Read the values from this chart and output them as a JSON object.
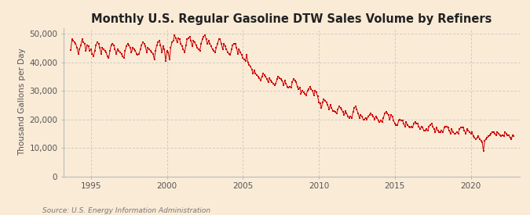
{
  "title": "Monthly U.S. Regular Gasoline DTW Sales Volume by Refiners",
  "ylabel": "Thousand Gallons per Day",
  "source": "Source: U.S. Energy Information Administration",
  "bg_color": "#faebd7",
  "line_color": "#cc0000",
  "grid_color": "#bbbbbb",
  "ylim": [
    0,
    52000
  ],
  "yticks": [
    0,
    10000,
    20000,
    30000,
    40000,
    50000
  ],
  "ytick_labels": [
    "0",
    "10,000",
    "20,000",
    "30,000",
    "40,000",
    "50,000"
  ],
  "x_start_year": 1993.2,
  "x_end_year": 2023.2,
  "xticks": [
    1995,
    2000,
    2005,
    2010,
    2015,
    2020
  ],
  "title_fontsize": 10.5,
  "label_fontsize": 7.5,
  "tick_fontsize": 7.5,
  "source_fontsize": 6.5,
  "series": [
    [
      1993.67,
      44200
    ],
    [
      1993.75,
      48000
    ],
    [
      1993.83,
      47500
    ],
    [
      1993.92,
      47000
    ],
    [
      1994.0,
      46500
    ],
    [
      1994.08,
      45000
    ],
    [
      1994.17,
      43000
    ],
    [
      1994.25,
      44500
    ],
    [
      1994.33,
      46000
    ],
    [
      1994.42,
      48000
    ],
    [
      1994.5,
      47000
    ],
    [
      1994.58,
      46500
    ],
    [
      1994.67,
      44000
    ],
    [
      1994.75,
      46000
    ],
    [
      1994.83,
      45500
    ],
    [
      1994.92,
      44000
    ],
    [
      1995.0,
      44500
    ],
    [
      1995.08,
      43000
    ],
    [
      1995.17,
      42000
    ],
    [
      1995.25,
      44000
    ],
    [
      1995.33,
      46000
    ],
    [
      1995.42,
      47000
    ],
    [
      1995.5,
      46500
    ],
    [
      1995.58,
      45000
    ],
    [
      1995.67,
      43000
    ],
    [
      1995.75,
      45000
    ],
    [
      1995.83,
      44500
    ],
    [
      1995.92,
      44000
    ],
    [
      1996.0,
      43500
    ],
    [
      1996.08,
      42000
    ],
    [
      1996.17,
      41500
    ],
    [
      1996.25,
      44000
    ],
    [
      1996.33,
      46000
    ],
    [
      1996.42,
      46500
    ],
    [
      1996.5,
      46000
    ],
    [
      1996.58,
      44500
    ],
    [
      1996.67,
      43000
    ],
    [
      1996.75,
      44500
    ],
    [
      1996.83,
      44000
    ],
    [
      1996.92,
      43500
    ],
    [
      1997.0,
      43000
    ],
    [
      1997.08,
      42000
    ],
    [
      1997.17,
      41500
    ],
    [
      1997.25,
      44000
    ],
    [
      1997.33,
      45500
    ],
    [
      1997.42,
      46500
    ],
    [
      1997.5,
      46000
    ],
    [
      1997.58,
      45000
    ],
    [
      1997.67,
      43500
    ],
    [
      1997.75,
      45000
    ],
    [
      1997.83,
      44500
    ],
    [
      1997.92,
      44000
    ],
    [
      1998.0,
      43000
    ],
    [
      1998.08,
      42500
    ],
    [
      1998.17,
      43000
    ],
    [
      1998.25,
      44500
    ],
    [
      1998.33,
      46000
    ],
    [
      1998.42,
      47000
    ],
    [
      1998.5,
      46500
    ],
    [
      1998.58,
      45500
    ],
    [
      1998.67,
      43500
    ],
    [
      1998.75,
      45000
    ],
    [
      1998.83,
      44500
    ],
    [
      1998.92,
      44000
    ],
    [
      1999.0,
      43500
    ],
    [
      1999.08,
      43000
    ],
    [
      1999.17,
      41000
    ],
    [
      1999.25,
      44000
    ],
    [
      1999.33,
      46000
    ],
    [
      1999.42,
      47000
    ],
    [
      1999.5,
      47500
    ],
    [
      1999.58,
      46000
    ],
    [
      1999.67,
      43500
    ],
    [
      1999.75,
      45500
    ],
    [
      1999.83,
      44500
    ],
    [
      1999.92,
      40500
    ],
    [
      2000.0,
      44000
    ],
    [
      2000.08,
      43500
    ],
    [
      2000.17,
      41000
    ],
    [
      2000.25,
      45000
    ],
    [
      2000.33,
      47000
    ],
    [
      2000.42,
      47500
    ],
    [
      2000.5,
      49500
    ],
    [
      2000.58,
      48500
    ],
    [
      2000.67,
      47000
    ],
    [
      2000.75,
      48500
    ],
    [
      2000.83,
      48000
    ],
    [
      2000.92,
      46500
    ],
    [
      2001.0,
      45500
    ],
    [
      2001.08,
      44500
    ],
    [
      2001.17,
      43500
    ],
    [
      2001.25,
      46000
    ],
    [
      2001.33,
      48000
    ],
    [
      2001.42,
      48500
    ],
    [
      2001.5,
      49000
    ],
    [
      2001.58,
      47500
    ],
    [
      2001.67,
      45500
    ],
    [
      2001.75,
      47500
    ],
    [
      2001.83,
      47000
    ],
    [
      2001.92,
      46000
    ],
    [
      2002.0,
      45000
    ],
    [
      2002.08,
      44500
    ],
    [
      2002.17,
      44000
    ],
    [
      2002.25,
      46500
    ],
    [
      2002.33,
      48000
    ],
    [
      2002.42,
      49000
    ],
    [
      2002.5,
      49500
    ],
    [
      2002.58,
      48000
    ],
    [
      2002.67,
      46500
    ],
    [
      2002.75,
      47500
    ],
    [
      2002.83,
      46500
    ],
    [
      2002.92,
      45500
    ],
    [
      2003.0,
      44500
    ],
    [
      2003.08,
      44000
    ],
    [
      2003.17,
      43500
    ],
    [
      2003.25,
      45000
    ],
    [
      2003.33,
      46500
    ],
    [
      2003.42,
      48000
    ],
    [
      2003.5,
      48000
    ],
    [
      2003.58,
      46500
    ],
    [
      2003.67,
      44500
    ],
    [
      2003.75,
      46500
    ],
    [
      2003.83,
      45500
    ],
    [
      2003.92,
      44500
    ],
    [
      2004.0,
      43500
    ],
    [
      2004.08,
      43000
    ],
    [
      2004.17,
      42500
    ],
    [
      2004.25,
      44500
    ],
    [
      2004.33,
      46000
    ],
    [
      2004.42,
      46500
    ],
    [
      2004.5,
      46500
    ],
    [
      2004.58,
      45000
    ],
    [
      2004.67,
      43000
    ],
    [
      2004.75,
      44500
    ],
    [
      2004.83,
      43500
    ],
    [
      2004.92,
      42500
    ],
    [
      2005.0,
      41500
    ],
    [
      2005.08,
      41000
    ],
    [
      2005.17,
      40500
    ],
    [
      2005.25,
      42500
    ],
    [
      2005.33,
      40000
    ],
    [
      2005.42,
      39000
    ],
    [
      2005.5,
      38500
    ],
    [
      2005.58,
      37500
    ],
    [
      2005.67,
      36000
    ],
    [
      2005.75,
      37000
    ],
    [
      2005.83,
      36000
    ],
    [
      2005.92,
      35500
    ],
    [
      2006.0,
      35000
    ],
    [
      2006.08,
      34500
    ],
    [
      2006.17,
      33500
    ],
    [
      2006.25,
      35000
    ],
    [
      2006.33,
      36000
    ],
    [
      2006.42,
      35500
    ],
    [
      2006.5,
      35000
    ],
    [
      2006.58,
      34000
    ],
    [
      2006.67,
      33000
    ],
    [
      2006.75,
      34500
    ],
    [
      2006.83,
      33500
    ],
    [
      2006.92,
      33000
    ],
    [
      2007.0,
      32500
    ],
    [
      2007.08,
      32000
    ],
    [
      2007.17,
      32500
    ],
    [
      2007.25,
      34000
    ],
    [
      2007.33,
      35000
    ],
    [
      2007.42,
      34500
    ],
    [
      2007.5,
      34000
    ],
    [
      2007.58,
      33500
    ],
    [
      2007.67,
      32000
    ],
    [
      2007.75,
      33500
    ],
    [
      2007.83,
      32500
    ],
    [
      2007.92,
      31500
    ],
    [
      2008.0,
      31000
    ],
    [
      2008.08,
      31500
    ],
    [
      2008.17,
      31000
    ],
    [
      2008.25,
      33000
    ],
    [
      2008.33,
      34000
    ],
    [
      2008.42,
      33500
    ],
    [
      2008.5,
      33000
    ],
    [
      2008.58,
      31500
    ],
    [
      2008.67,
      30500
    ],
    [
      2008.75,
      31000
    ],
    [
      2008.83,
      29000
    ],
    [
      2008.92,
      30000
    ],
    [
      2009.0,
      29500
    ],
    [
      2009.08,
      29000
    ],
    [
      2009.17,
      28500
    ],
    [
      2009.25,
      30000
    ],
    [
      2009.33,
      30500
    ],
    [
      2009.42,
      31500
    ],
    [
      2009.5,
      30500
    ],
    [
      2009.58,
      30000
    ],
    [
      2009.67,
      28500
    ],
    [
      2009.75,
      30000
    ],
    [
      2009.83,
      29500
    ],
    [
      2009.92,
      28000
    ],
    [
      2010.0,
      26000
    ],
    [
      2010.08,
      25500
    ],
    [
      2010.17,
      24000
    ],
    [
      2010.25,
      26000
    ],
    [
      2010.33,
      27000
    ],
    [
      2010.42,
      26500
    ],
    [
      2010.5,
      26000
    ],
    [
      2010.58,
      25000
    ],
    [
      2010.67,
      23500
    ],
    [
      2010.75,
      25000
    ],
    [
      2010.83,
      24000
    ],
    [
      2010.92,
      23000
    ],
    [
      2011.0,
      23000
    ],
    [
      2011.08,
      22500
    ],
    [
      2011.17,
      22000
    ],
    [
      2011.25,
      23500
    ],
    [
      2011.33,
      24500
    ],
    [
      2011.42,
      24000
    ],
    [
      2011.5,
      23500
    ],
    [
      2011.58,
      22500
    ],
    [
      2011.67,
      21500
    ],
    [
      2011.75,
      23000
    ],
    [
      2011.83,
      22000
    ],
    [
      2011.92,
      21000
    ],
    [
      2012.0,
      20500
    ],
    [
      2012.08,
      21000
    ],
    [
      2012.17,
      20500
    ],
    [
      2012.25,
      22500
    ],
    [
      2012.33,
      24000
    ],
    [
      2012.42,
      24500
    ],
    [
      2012.5,
      23500
    ],
    [
      2012.58,
      22000
    ],
    [
      2012.67,
      20500
    ],
    [
      2012.75,
      21500
    ],
    [
      2012.83,
      21000
    ],
    [
      2012.92,
      20000
    ],
    [
      2013.0,
      20000
    ],
    [
      2013.08,
      20500
    ],
    [
      2013.17,
      20000
    ],
    [
      2013.25,
      21000
    ],
    [
      2013.33,
      21500
    ],
    [
      2013.42,
      22000
    ],
    [
      2013.5,
      21500
    ],
    [
      2013.58,
      21000
    ],
    [
      2013.67,
      20000
    ],
    [
      2013.75,
      21000
    ],
    [
      2013.83,
      20500
    ],
    [
      2013.92,
      19500
    ],
    [
      2014.0,
      19000
    ],
    [
      2014.08,
      19500
    ],
    [
      2014.17,
      19000
    ],
    [
      2014.25,
      20500
    ],
    [
      2014.33,
      22000
    ],
    [
      2014.42,
      22500
    ],
    [
      2014.5,
      22000
    ],
    [
      2014.58,
      21500
    ],
    [
      2014.67,
      20000
    ],
    [
      2014.75,
      21500
    ],
    [
      2014.83,
      21000
    ],
    [
      2014.92,
      19500
    ],
    [
      2015.0,
      18500
    ],
    [
      2015.08,
      18000
    ],
    [
      2015.17,
      18000
    ],
    [
      2015.25,
      19500
    ],
    [
      2015.33,
      20000
    ],
    [
      2015.42,
      19500
    ],
    [
      2015.5,
      19500
    ],
    [
      2015.58,
      18500
    ],
    [
      2015.67,
      17500
    ],
    [
      2015.75,
      19000
    ],
    [
      2015.83,
      18000
    ],
    [
      2015.92,
      17500
    ],
    [
      2016.0,
      17000
    ],
    [
      2016.08,
      17500
    ],
    [
      2016.17,
      17000
    ],
    [
      2016.25,
      18500
    ],
    [
      2016.33,
      19000
    ],
    [
      2016.42,
      18500
    ],
    [
      2016.5,
      18500
    ],
    [
      2016.58,
      17500
    ],
    [
      2016.67,
      16500
    ],
    [
      2016.75,
      17500
    ],
    [
      2016.83,
      17000
    ],
    [
      2016.92,
      16000
    ],
    [
      2017.0,
      16000
    ],
    [
      2017.08,
      16500
    ],
    [
      2017.17,
      16000
    ],
    [
      2017.25,
      17500
    ],
    [
      2017.33,
      18000
    ],
    [
      2017.42,
      18500
    ],
    [
      2017.5,
      17500
    ],
    [
      2017.58,
      16500
    ],
    [
      2017.67,
      15500
    ],
    [
      2017.75,
      17000
    ],
    [
      2017.83,
      16000
    ],
    [
      2017.92,
      15500
    ],
    [
      2018.0,
      15500
    ],
    [
      2018.08,
      16000
    ],
    [
      2018.17,
      15500
    ],
    [
      2018.25,
      17000
    ],
    [
      2018.33,
      17500
    ],
    [
      2018.42,
      17500
    ],
    [
      2018.5,
      17000
    ],
    [
      2018.58,
      16000
    ],
    [
      2018.67,
      15000
    ],
    [
      2018.75,
      16500
    ],
    [
      2018.83,
      15500
    ],
    [
      2018.92,
      15000
    ],
    [
      2019.0,
      15000
    ],
    [
      2019.08,
      15500
    ],
    [
      2019.17,
      15000
    ],
    [
      2019.25,
      16500
    ],
    [
      2019.33,
      17000
    ],
    [
      2019.42,
      17000
    ],
    [
      2019.5,
      17000
    ],
    [
      2019.58,
      16000
    ],
    [
      2019.67,
      15000
    ],
    [
      2019.75,
      16500
    ],
    [
      2019.83,
      16000
    ],
    [
      2019.92,
      15500
    ],
    [
      2020.0,
      15000
    ],
    [
      2020.08,
      15500
    ],
    [
      2020.17,
      14000
    ],
    [
      2020.25,
      13500
    ],
    [
      2020.33,
      13000
    ],
    [
      2020.42,
      13500
    ],
    [
      2020.5,
      14000
    ],
    [
      2020.58,
      13000
    ],
    [
      2020.67,
      12500
    ],
    [
      2020.75,
      12000
    ],
    [
      2020.83,
      9000
    ],
    [
      2020.92,
      12500
    ],
    [
      2021.0,
      13000
    ],
    [
      2021.08,
      13500
    ],
    [
      2021.17,
      14000
    ],
    [
      2021.25,
      14500
    ],
    [
      2021.33,
      15000
    ],
    [
      2021.42,
      15500
    ],
    [
      2021.5,
      15500
    ],
    [
      2021.58,
      15000
    ],
    [
      2021.67,
      14500
    ],
    [
      2021.75,
      15500
    ],
    [
      2021.83,
      15000
    ],
    [
      2021.92,
      14500
    ],
    [
      2022.0,
      14000
    ],
    [
      2022.08,
      14500
    ],
    [
      2022.17,
      14000
    ],
    [
      2022.25,
      15500
    ],
    [
      2022.33,
      15000
    ],
    [
      2022.42,
      14500
    ],
    [
      2022.5,
      14500
    ],
    [
      2022.58,
      13500
    ],
    [
      2022.67,
      13000
    ],
    [
      2022.75,
      14500
    ],
    [
      2022.83,
      14000
    ]
  ]
}
